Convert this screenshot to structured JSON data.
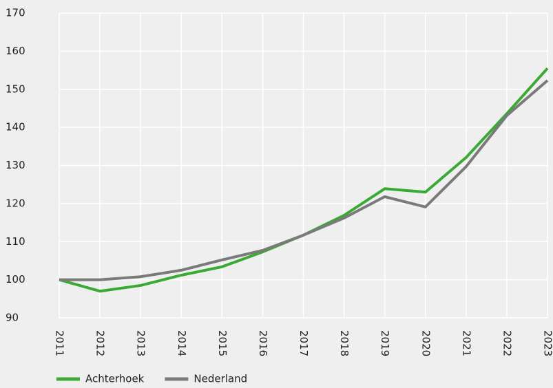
{
  "chart_data": {
    "type": "line",
    "x": [
      2011,
      2012,
      2013,
      2014,
      2015,
      2016,
      2017,
      2018,
      2019,
      2020,
      2021,
      2022,
      2023
    ],
    "series": [
      {
        "name": "Achterhoek",
        "color": "#3aaa35",
        "values": [
          100,
          97.0,
          98.5,
          101.2,
          103.4,
          107.3,
          111.7,
          116.9,
          123.9,
          123.0,
          132.1,
          143.6,
          155.5
        ]
      },
      {
        "name": "Nederland",
        "color": "#7a7a7a",
        "values": [
          100,
          100,
          100.8,
          102.5,
          105.2,
          107.7,
          111.7,
          116.2,
          121.8,
          119.1,
          129.7,
          143.1,
          152.3
        ]
      }
    ],
    "xlim": [
      2011,
      2023
    ],
    "xticks": [
      2011,
      2012,
      2013,
      2014,
      2015,
      2016,
      2017,
      2018,
      2019,
      2020,
      2021,
      2022,
      2023
    ],
    "ylim": [
      90,
      170
    ],
    "yticks": [
      90,
      100,
      110,
      120,
      130,
      140,
      150,
      160,
      170
    ],
    "grid": true,
    "legend": "bottom"
  }
}
